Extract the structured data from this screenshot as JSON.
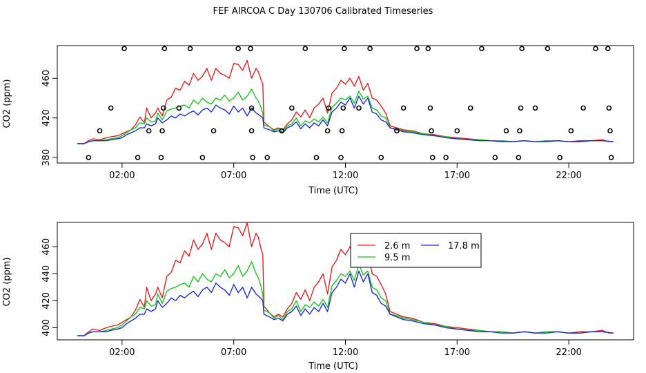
{
  "title": "FEF AIRCOA C  Day 130706  Calibrated Timeseries",
  "colors": {
    "red": "#e0201e",
    "green": "#19c51d",
    "blue": "#1a2bd0",
    "black": "#000000"
  },
  "chart_data": [
    {
      "type": "scatter+line",
      "name": "top-panel",
      "xlabel": "Time (UTC)",
      "ylabel": "CO2 (ppm)",
      "xticks": [
        2,
        7,
        12,
        17,
        22
      ],
      "xtick_labels": [
        "02:00",
        "07:00",
        "12:00",
        "17:00",
        "22:00"
      ],
      "yticks": [
        380,
        420,
        460
      ],
      "xlim": [
        -0.9,
        24.9
      ],
      "ylim": [
        374.5,
        493
      ],
      "series_ref": "shared",
      "calibration_points": [
        {
          "x": 0.5,
          "y": 380
        },
        {
          "x": 1.0,
          "y": 407
        },
        {
          "x": 1.5,
          "y": 430
        },
        {
          "x": 2.1,
          "y": 490
        },
        {
          "x": 2.7,
          "y": 380
        },
        {
          "x": 3.2,
          "y": 407
        },
        {
          "x": 3.75,
          "y": 380
        },
        {
          "x": 3.8,
          "y": 407
        },
        {
          "x": 3.85,
          "y": 430
        },
        {
          "x": 3.9,
          "y": 490
        },
        {
          "x": 4.55,
          "y": 430
        },
        {
          "x": 5.05,
          "y": 490
        },
        {
          "x": 5.6,
          "y": 380
        },
        {
          "x": 6.1,
          "y": 407
        },
        {
          "x": 7.2,
          "y": 490
        },
        {
          "x": 7.75,
          "y": 490
        },
        {
          "x": 7.8,
          "y": 407
        },
        {
          "x": 7.85,
          "y": 380
        },
        {
          "x": 7.8,
          "y": 430
        },
        {
          "x": 8.5,
          "y": 380
        },
        {
          "x": 9.15,
          "y": 407
        },
        {
          "x": 9.6,
          "y": 430
        },
        {
          "x": 10.2,
          "y": 490
        },
        {
          "x": 10.7,
          "y": 380
        },
        {
          "x": 11.2,
          "y": 407
        },
        {
          "x": 11.25,
          "y": 430
        },
        {
          "x": 11.8,
          "y": 380
        },
        {
          "x": 11.85,
          "y": 407
        },
        {
          "x": 11.9,
          "y": 430
        },
        {
          "x": 11.95,
          "y": 490
        },
        {
          "x": 12.6,
          "y": 430
        },
        {
          "x": 13.1,
          "y": 490
        },
        {
          "x": 13.6,
          "y": 380
        },
        {
          "x": 14.3,
          "y": 407
        },
        {
          "x": 14.6,
          "y": 430
        },
        {
          "x": 15.2,
          "y": 490
        },
        {
          "x": 15.7,
          "y": 490
        },
        {
          "x": 15.8,
          "y": 430
        },
        {
          "x": 15.85,
          "y": 407
        },
        {
          "x": 15.9,
          "y": 380
        },
        {
          "x": 16.5,
          "y": 380
        },
        {
          "x": 17.0,
          "y": 407
        },
        {
          "x": 17.6,
          "y": 430
        },
        {
          "x": 18.1,
          "y": 490
        },
        {
          "x": 18.7,
          "y": 380
        },
        {
          "x": 19.2,
          "y": 407
        },
        {
          "x": 19.75,
          "y": 380
        },
        {
          "x": 19.8,
          "y": 407
        },
        {
          "x": 19.85,
          "y": 430
        },
        {
          "x": 19.9,
          "y": 490
        },
        {
          "x": 20.5,
          "y": 430
        },
        {
          "x": 21.05,
          "y": 490
        },
        {
          "x": 21.6,
          "y": 380
        },
        {
          "x": 22.1,
          "y": 407
        },
        {
          "x": 22.65,
          "y": 430
        },
        {
          "x": 23.2,
          "y": 490
        },
        {
          "x": 23.75,
          "y": 490
        },
        {
          "x": 23.8,
          "y": 430
        },
        {
          "x": 23.85,
          "y": 407
        },
        {
          "x": 23.9,
          "y": 380
        }
      ]
    },
    {
      "type": "line",
      "name": "bottom-panel",
      "xlabel": "Time (UTC)",
      "ylabel": "CO2 (ppm)",
      "xticks": [
        2,
        7,
        12,
        17,
        22
      ],
      "xtick_labels": [
        "02:00",
        "07:00",
        "12:00",
        "17:00",
        "22:00"
      ],
      "yticks": [
        400,
        420,
        440,
        460
      ],
      "xlim": [
        -0.9,
        24.9
      ],
      "ylim": [
        391,
        478
      ],
      "legend": {
        "placement": "top-center",
        "entries": [
          {
            "label": "2.6 m",
            "color": "#e0201e"
          },
          {
            "label": "17.8 m",
            "color": "#1a2bd0"
          },
          {
            "label": "9.5 m",
            "color": "#19c51d"
          }
        ]
      },
      "series_ref": "shared"
    }
  ],
  "series": [
    {
      "name": "2.6 m",
      "color": "#e0201e",
      "points": [
        [
          0,
          394
        ],
        [
          0.3,
          394
        ],
        [
          0.5,
          397
        ],
        [
          0.7,
          399
        ],
        [
          1.0,
          398
        ],
        [
          1.3,
          400
        ],
        [
          1.5,
          401
        ],
        [
          1.8,
          402
        ],
        [
          2.0,
          404
        ],
        [
          2.2,
          406
        ],
        [
          2.4,
          408
        ],
        [
          2.6,
          413
        ],
        [
          2.8,
          421
        ],
        [
          3.0,
          415
        ],
        [
          3.1,
          430
        ],
        [
          3.3,
          420
        ],
        [
          3.5,
          425
        ],
        [
          3.6,
          430
        ],
        [
          3.8,
          422
        ],
        [
          4.0,
          438
        ],
        [
          4.2,
          441
        ],
        [
          4.4,
          450
        ],
        [
          4.6,
          448
        ],
        [
          4.8,
          457
        ],
        [
          5.0,
          453
        ],
        [
          5.2,
          465
        ],
        [
          5.4,
          458
        ],
        [
          5.6,
          462
        ],
        [
          5.8,
          470
        ],
        [
          6.0,
          458
        ],
        [
          6.2,
          470
        ],
        [
          6.4,
          465
        ],
        [
          6.6,
          463
        ],
        [
          6.8,
          460
        ],
        [
          7.0,
          475
        ],
        [
          7.2,
          474
        ],
        [
          7.4,
          468
        ],
        [
          7.6,
          478
        ],
        [
          7.8,
          460
        ],
        [
          8.0,
          470
        ],
        [
          8.1,
          467
        ],
        [
          8.2,
          460
        ],
        [
          8.3,
          454
        ],
        [
          8.35,
          416
        ],
        [
          8.6,
          411
        ],
        [
          8.8,
          408
        ],
        [
          9.0,
          410
        ],
        [
          9.2,
          408
        ],
        [
          9.4,
          414
        ],
        [
          9.6,
          418
        ],
        [
          9.8,
          426
        ],
        [
          10.0,
          421
        ],
        [
          10.2,
          428
        ],
        [
          10.4,
          420
        ],
        [
          10.6,
          430
        ],
        [
          10.8,
          434
        ],
        [
          11.0,
          440
        ],
        [
          11.2,
          425
        ],
        [
          11.4,
          445
        ],
        [
          11.6,
          450
        ],
        [
          11.8,
          458
        ],
        [
          12.0,
          454
        ],
        [
          12.2,
          460
        ],
        [
          12.4,
          452
        ],
        [
          12.6,
          462
        ],
        [
          12.8,
          448
        ],
        [
          13.0,
          455
        ],
        [
          13.2,
          440
        ],
        [
          13.4,
          438
        ],
        [
          13.6,
          432
        ],
        [
          13.8,
          425
        ],
        [
          14.0,
          412
        ],
        [
          14.3,
          410
        ],
        [
          14.6,
          408
        ],
        [
          15.0,
          407
        ],
        [
          15.5,
          404
        ],
        [
          16.0,
          403
        ],
        [
          16.5,
          401
        ],
        [
          17.0,
          400
        ],
        [
          17.5,
          399
        ],
        [
          18.0,
          398
        ],
        [
          18.5,
          397
        ],
        [
          19.0,
          397
        ],
        [
          19.5,
          396
        ],
        [
          20.0,
          397
        ],
        [
          20.5,
          396
        ],
        [
          21.0,
          397
        ],
        [
          21.5,
          397
        ],
        [
          22.0,
          396
        ],
        [
          22.5,
          397
        ],
        [
          23.0,
          397
        ],
        [
          23.5,
          398
        ],
        [
          23.8,
          396
        ],
        [
          24.0,
          396
        ]
      ]
    },
    {
      "name": "9.5 m",
      "color": "#19c51d",
      "points": [
        [
          0,
          394
        ],
        [
          0.3,
          394
        ],
        [
          0.5,
          396
        ],
        [
          0.7,
          397
        ],
        [
          1.0,
          397
        ],
        [
          1.3,
          398
        ],
        [
          1.5,
          399
        ],
        [
          1.8,
          400
        ],
        [
          2.0,
          402
        ],
        [
          2.2,
          405
        ],
        [
          2.4,
          408
        ],
        [
          2.6,
          410
        ],
        [
          2.8,
          415
        ],
        [
          3.0,
          414
        ],
        [
          3.1,
          420
        ],
        [
          3.3,
          416
        ],
        [
          3.5,
          417
        ],
        [
          3.6,
          425
        ],
        [
          3.8,
          418
        ],
        [
          4.0,
          427
        ],
        [
          4.2,
          429
        ],
        [
          4.4,
          430
        ],
        [
          4.6,
          432
        ],
        [
          4.8,
          433
        ],
        [
          5.0,
          430
        ],
        [
          5.2,
          438
        ],
        [
          5.4,
          434
        ],
        [
          5.6,
          440
        ],
        [
          5.8,
          436
        ],
        [
          6.0,
          434
        ],
        [
          6.2,
          440
        ],
        [
          6.4,
          438
        ],
        [
          6.6,
          443
        ],
        [
          6.8,
          437
        ],
        [
          7.0,
          440
        ],
        [
          7.2,
          446
        ],
        [
          7.4,
          438
        ],
        [
          7.6,
          442
        ],
        [
          7.8,
          449
        ],
        [
          8.0,
          440
        ],
        [
          8.1,
          437
        ],
        [
          8.2,
          432
        ],
        [
          8.3,
          425
        ],
        [
          8.35,
          413
        ],
        [
          8.6,
          411
        ],
        [
          8.8,
          407
        ],
        [
          9.0,
          409
        ],
        [
          9.2,
          406
        ],
        [
          9.4,
          412
        ],
        [
          9.6,
          414
        ],
        [
          9.8,
          420
        ],
        [
          10.0,
          412
        ],
        [
          10.2,
          417
        ],
        [
          10.4,
          415
        ],
        [
          10.6,
          419
        ],
        [
          10.8,
          416
        ],
        [
          11.0,
          421
        ],
        [
          11.2,
          415
        ],
        [
          11.4,
          431
        ],
        [
          11.6,
          435
        ],
        [
          11.8,
          440
        ],
        [
          12.0,
          438
        ],
        [
          12.2,
          442
        ],
        [
          12.4,
          435
        ],
        [
          12.6,
          447
        ],
        [
          12.8,
          439
        ],
        [
          13.0,
          442
        ],
        [
          13.2,
          430
        ],
        [
          13.4,
          428
        ],
        [
          13.6,
          422
        ],
        [
          13.8,
          420
        ],
        [
          14.0,
          410
        ],
        [
          14.3,
          409
        ],
        [
          14.6,
          407
        ],
        [
          15.0,
          406
        ],
        [
          15.5,
          404
        ],
        [
          16.0,
          402
        ],
        [
          16.5,
          401
        ],
        [
          17.0,
          399
        ],
        [
          17.5,
          398
        ],
        [
          18.0,
          398
        ],
        [
          18.5,
          397
        ],
        [
          19.0,
          397
        ],
        [
          19.5,
          396
        ],
        [
          20.0,
          397
        ],
        [
          20.5,
          396
        ],
        [
          21.0,
          397
        ],
        [
          21.5,
          397
        ],
        [
          22.0,
          396
        ],
        [
          22.5,
          396
        ],
        [
          23.0,
          397
        ],
        [
          23.5,
          397
        ],
        [
          24.0,
          396
        ]
      ]
    },
    {
      "name": "17.8 m",
      "color": "#1a2bd0",
      "points": [
        [
          0,
          394
        ],
        [
          0.3,
          394
        ],
        [
          0.5,
          396
        ],
        [
          0.7,
          397
        ],
        [
          1.0,
          397
        ],
        [
          1.3,
          397
        ],
        [
          1.5,
          398
        ],
        [
          1.8,
          399
        ],
        [
          2.0,
          400
        ],
        [
          2.2,
          403
        ],
        [
          2.4,
          405
        ],
        [
          2.6,
          407
        ],
        [
          2.8,
          410
        ],
        [
          3.0,
          410
        ],
        [
          3.1,
          414
        ],
        [
          3.3,
          412
        ],
        [
          3.5,
          414
        ],
        [
          3.6,
          420
        ],
        [
          3.8,
          415
        ],
        [
          4.0,
          418
        ],
        [
          4.2,
          422
        ],
        [
          4.4,
          420
        ],
        [
          4.6,
          424
        ],
        [
          4.8,
          422
        ],
        [
          5.0,
          425
        ],
        [
          5.2,
          427
        ],
        [
          5.4,
          423
        ],
        [
          5.6,
          428
        ],
        [
          5.8,
          430
        ],
        [
          6.0,
          426
        ],
        [
          6.2,
          433
        ],
        [
          6.4,
          430
        ],
        [
          6.6,
          428
        ],
        [
          6.8,
          424
        ],
        [
          7.0,
          432
        ],
        [
          7.2,
          426
        ],
        [
          7.4,
          430
        ],
        [
          7.6,
          422
        ],
        [
          7.8,
          430
        ],
        [
          8.0,
          425
        ],
        [
          8.2,
          422
        ],
        [
          8.3,
          420
        ],
        [
          8.35,
          410
        ],
        [
          8.6,
          408
        ],
        [
          8.8,
          406
        ],
        [
          9.0,
          407
        ],
        [
          9.2,
          405
        ],
        [
          9.4,
          410
        ],
        [
          9.6,
          412
        ],
        [
          9.8,
          416
        ],
        [
          10.0,
          409
        ],
        [
          10.2,
          414
        ],
        [
          10.4,
          410
        ],
        [
          10.6,
          415
        ],
        [
          10.8,
          412
        ],
        [
          11.0,
          418
        ],
        [
          11.2,
          412
        ],
        [
          11.4,
          426
        ],
        [
          11.6,
          430
        ],
        [
          11.8,
          436
        ],
        [
          12.0,
          433
        ],
        [
          12.2,
          440
        ],
        [
          12.4,
          430
        ],
        [
          12.6,
          442
        ],
        [
          12.8,
          434
        ],
        [
          13.0,
          440
        ],
        [
          13.2,
          426
        ],
        [
          13.4,
          424
        ],
        [
          13.6,
          418
        ],
        [
          13.8,
          416
        ],
        [
          14.0,
          410
        ],
        [
          14.3,
          408
        ],
        [
          14.6,
          406
        ],
        [
          15.0,
          405
        ],
        [
          15.5,
          403
        ],
        [
          16.0,
          402
        ],
        [
          16.5,
          400
        ],
        [
          17.0,
          399
        ],
        [
          17.5,
          398
        ],
        [
          18.0,
          397
        ],
        [
          18.5,
          397
        ],
        [
          19.0,
          396
        ],
        [
          19.5,
          396
        ],
        [
          20.0,
          397
        ],
        [
          20.5,
          396
        ],
        [
          21.0,
          396
        ],
        [
          21.5,
          397
        ],
        [
          22.0,
          396
        ],
        [
          22.5,
          396
        ],
        [
          23.0,
          397
        ],
        [
          23.5,
          397
        ],
        [
          24.0,
          396
        ]
      ]
    }
  ]
}
